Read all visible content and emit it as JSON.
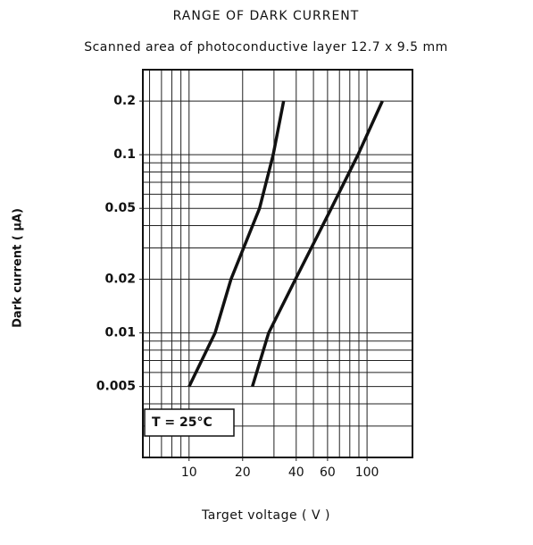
{
  "chart_data": {
    "type": "line",
    "title": "RANGE OF DARK CURRENT",
    "subtitle": "Scanned area of photoconductive layer 12.7 x 9.5 mm",
    "xlabel": "Target voltage ( V )",
    "ylabel": "Dark current ( μA)",
    "annotation": "T = 25°C",
    "xscale": "log",
    "yscale": "log",
    "grid": true,
    "xlim": [
      5.5,
      180
    ],
    "ylim": [
      0.002,
      0.3
    ],
    "xticks": [
      10,
      20,
      40,
      60,
      100
    ],
    "yticks": [
      0.2,
      0.1,
      0.05,
      0.02,
      0.01,
      0.005
    ],
    "x_gridlines": [
      6,
      7,
      8,
      9,
      10,
      20,
      30,
      40,
      50,
      60,
      70,
      80,
      90,
      100
    ],
    "y_gridlines": [
      0.003,
      0.004,
      0.005,
      0.006,
      0.007,
      0.008,
      0.009,
      0.01,
      0.02,
      0.03,
      0.04,
      0.05,
      0.06,
      0.07,
      0.08,
      0.09,
      0.1,
      0.2
    ],
    "series": [
      {
        "color": "#111111",
        "x": [
          10,
          14,
          17.2,
          24.9,
          29.7,
          34
        ],
        "values": [
          0.005,
          0.01,
          0.02,
          0.05,
          0.1,
          0.2
        ]
      },
      {
        "color": "#111111",
        "x": [
          22.7,
          28,
          39.6,
          63,
          89,
          122
        ],
        "values": [
          0.005,
          0.01,
          0.02,
          0.05,
          0.1,
          0.2
        ]
      }
    ]
  }
}
